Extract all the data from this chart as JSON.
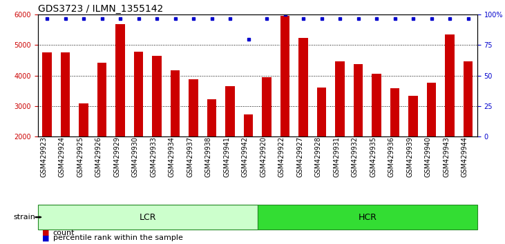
{
  "title": "GDS3723 / ILMN_1355142",
  "samples": [
    "GSM429923",
    "GSM429924",
    "GSM429925",
    "GSM429926",
    "GSM429929",
    "GSM429930",
    "GSM429933",
    "GSM429934",
    "GSM429937",
    "GSM429938",
    "GSM429941",
    "GSM429942",
    "GSM429920",
    "GSM429922",
    "GSM429927",
    "GSM429928",
    "GSM429931",
    "GSM429932",
    "GSM429935",
    "GSM429936",
    "GSM429939",
    "GSM429940",
    "GSM429943",
    "GSM429944"
  ],
  "counts": [
    4770,
    4770,
    3100,
    4420,
    5680,
    4780,
    4650,
    4170,
    3880,
    3230,
    3650,
    2720,
    3950,
    5950,
    5240,
    3620,
    4470,
    4370,
    4060,
    3580,
    3350,
    3760,
    5360,
    4480
  ],
  "percentile_ranks": [
    97,
    97,
    97,
    97,
    97,
    97,
    97,
    97,
    97,
    97,
    97,
    80,
    97,
    100,
    97,
    97,
    97,
    97,
    97,
    97,
    97,
    97,
    97,
    97
  ],
  "bar_color": "#cc0000",
  "percentile_color": "#0000cc",
  "ylim_left": [
    2000,
    6000
  ],
  "ylim_right": [
    0,
    100
  ],
  "yticks_left": [
    2000,
    3000,
    4000,
    5000,
    6000
  ],
  "yticks_right": [
    0,
    25,
    50,
    75,
    100
  ],
  "grid_lines": [
    3000,
    4000,
    5000
  ],
  "lcr_count": 12,
  "hcr_count": 12,
  "lcr_color": "#ccffcc",
  "hcr_color": "#33dd33",
  "bar_width": 0.5,
  "title_fontsize": 10,
  "tick_fontsize": 7,
  "label_fontsize": 8,
  "group_fontsize": 9
}
